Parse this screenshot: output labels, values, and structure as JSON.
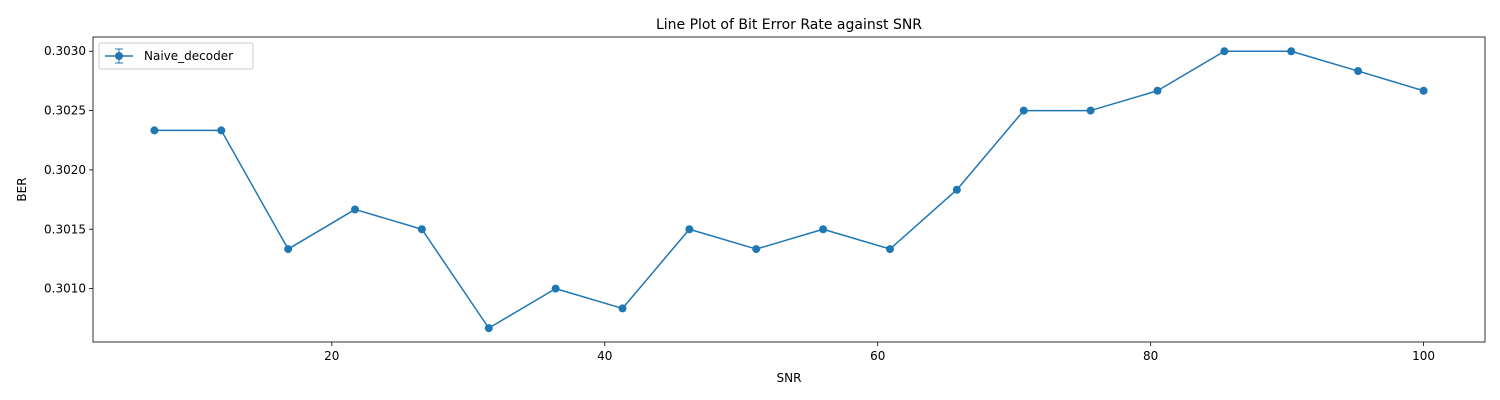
{
  "chart_data": {
    "type": "line",
    "title": "Line Plot of Bit Error Rate against SNR",
    "xlabel": "SNR",
    "ylabel": "BER",
    "xlim": [
      2.5,
      104.5
    ],
    "ylim": [
      0.30055,
      0.30312
    ],
    "xticks": [
      20,
      40,
      60,
      80,
      100
    ],
    "xtick_labels": [
      "20",
      "40",
      "60",
      "80",
      "100"
    ],
    "yticks": [
      0.301,
      0.3015,
      0.302,
      0.3025,
      0.303
    ],
    "ytick_labels": [
      "0.3010",
      "0.3015",
      "0.3020",
      "0.3025",
      "0.3030"
    ],
    "grid": false,
    "legend_position": "top-left",
    "series": [
      {
        "name": "Naive_decoder",
        "color": "#1f77b4",
        "marker": "circle",
        "error_bars": true,
        "x": [
          7,
          11.9,
          16.8,
          21.7,
          26.6,
          31.5,
          36.4,
          41.3,
          46.2,
          51.1,
          56.0,
          60.9,
          65.8,
          70.7,
          75.6,
          80.5,
          85.4,
          90.3,
          95.2,
          100
        ],
        "y": [
          0.302333,
          0.302333,
          0.301333,
          0.301667,
          0.3015,
          0.300667,
          0.301,
          0.300833,
          0.3015,
          0.301333,
          0.3015,
          0.301333,
          0.301833,
          0.3025,
          0.3025,
          0.302667,
          0.303,
          0.303,
          0.302833,
          0.302667
        ]
      }
    ]
  }
}
